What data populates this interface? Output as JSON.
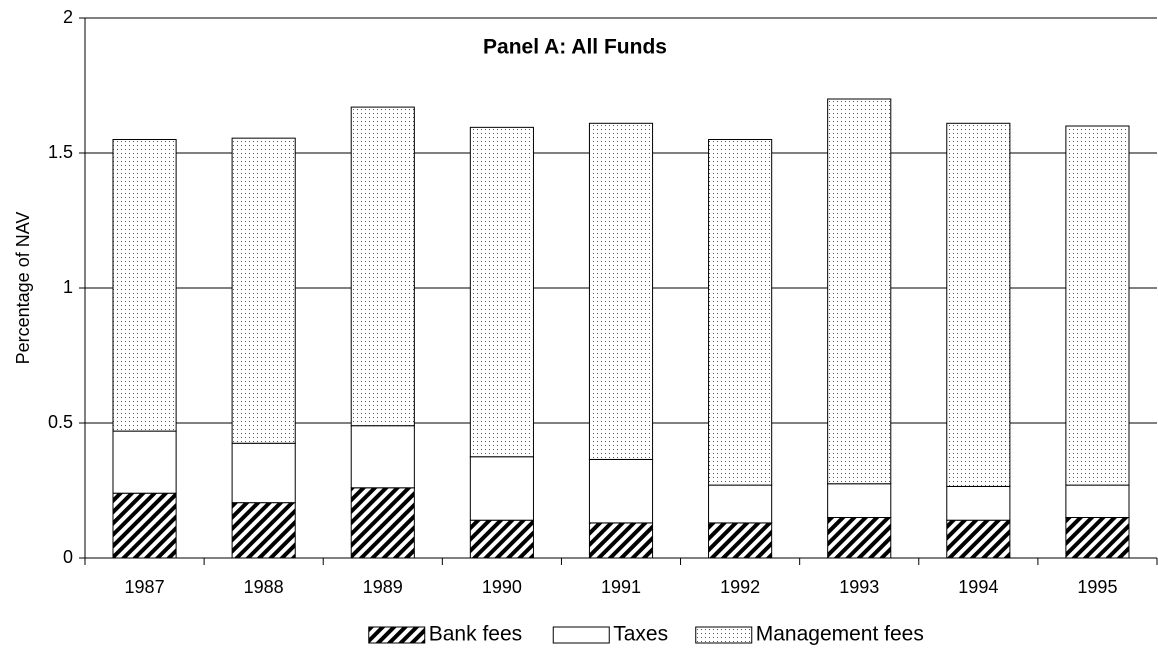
{
  "chart_data": {
    "type": "stacked_bar",
    "title": "Panel A: All Funds",
    "y_label": "Percentage of NAV",
    "categories": [
      "1987",
      "1988",
      "1989",
      "1990",
      "1991",
      "1992",
      "1993",
      "1994",
      "1995"
    ],
    "series": [
      {
        "name": "Bank fees",
        "color": "#000000",
        "pattern": "hatch",
        "values": [
          0.24,
          0.205,
          0.26,
          0.14,
          0.13,
          0.13,
          0.15,
          0.14,
          0.15
        ]
      },
      {
        "name": "Taxes",
        "color": "#ffffff",
        "pattern": "none",
        "values": [
          0.23,
          0.22,
          0.23,
          0.235,
          0.235,
          0.14,
          0.125,
          0.125,
          0.12
        ]
      },
      {
        "name": "Management fees",
        "color": "#000000",
        "pattern": "dots",
        "values": [
          1.08,
          1.13,
          1.18,
          1.22,
          1.245,
          1.28,
          1.425,
          1.345,
          1.33
        ]
      }
    ],
    "ylim": [
      0,
      2
    ],
    "yticks": [
      0,
      0.5,
      1,
      1.5,
      2
    ],
    "grid": true,
    "legend": "bottom"
  }
}
